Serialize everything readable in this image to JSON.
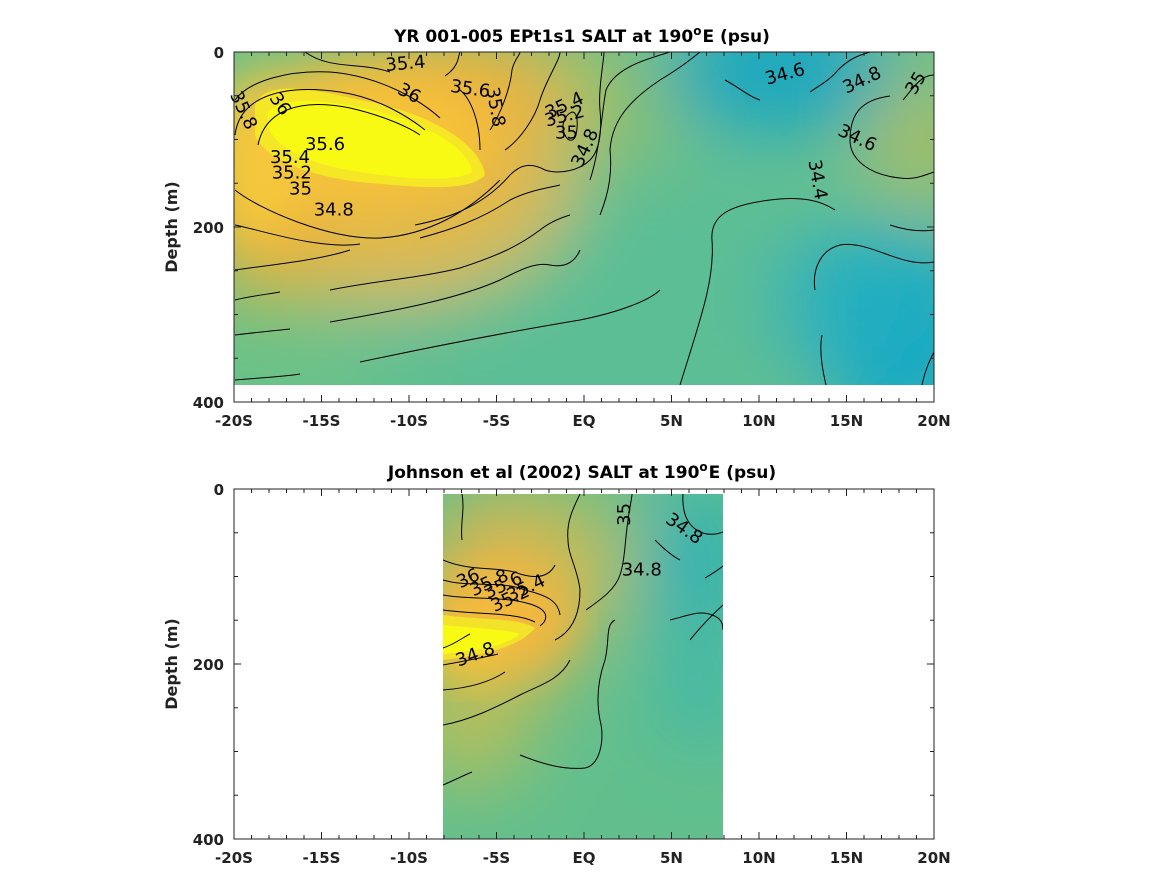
{
  "chart_data": [
    {
      "type": "heatmap",
      "title": "YR 001-005 EPt1s1 SALT at 190",
      "title_sup": "o",
      "title_tail": "E (psu)",
      "ylabel": "Depth (m)",
      "xlim": [
        -20,
        20
      ],
      "ylim": [
        0,
        400
      ],
      "y_reversed": true,
      "data_extent": {
        "x": [
          -20,
          20
        ],
        "y": [
          0,
          380
        ]
      },
      "x_ticks": [
        -20,
        -15,
        -10,
        -5,
        0,
        5,
        10,
        15,
        20
      ],
      "x_tick_labels": [
        "-20S",
        "-15S",
        "-10S",
        "-5S",
        "EQ",
        "5N",
        "10N",
        "15N",
        "20N"
      ],
      "y_ticks": [
        0,
        200,
        400
      ],
      "y_tick_labels": [
        "0",
        "200",
        "400"
      ],
      "colorscale": [
        "#0ca5c6",
        "#3cbab0",
        "#68c088",
        "#9ec462",
        "#d8bb4a",
        "#f7bc40",
        "#f9dc30",
        "#f9fa14"
      ],
      "salinity_range": [
        34.3,
        36.1
      ],
      "features": [
        {
          "x": -12,
          "y": 120,
          "salt": 36.1
        },
        {
          "x": -16,
          "y": 90,
          "salt": 35.9
        },
        {
          "x": -5,
          "y": 60,
          "salt": 35.5
        },
        {
          "x": -2,
          "y": 20,
          "salt": 35.3
        },
        {
          "x": -19,
          "y": 250,
          "salt": 35.4
        },
        {
          "x": 10,
          "y": 20,
          "salt": 34.4
        },
        {
          "x": 18,
          "y": 300,
          "salt": 34.4
        },
        {
          "x": 13,
          "y": 300,
          "salt": 34.5
        },
        {
          "x": 18,
          "y": 80,
          "salt": 35.0
        },
        {
          "x": 5,
          "y": 200,
          "salt": 34.8
        },
        {
          "x": -10,
          "y": 350,
          "salt": 34.85
        },
        {
          "x": 0,
          "y": 330,
          "salt": 34.8
        }
      ],
      "contour_labels": [
        {
          "text": "35.4",
          "x": -10.2,
          "y": 14,
          "angle": -5
        },
        {
          "text": "35.6",
          "x": -6.5,
          "y": 43,
          "angle": 8
        },
        {
          "text": "36",
          "x": -10,
          "y": 48,
          "angle": 28
        },
        {
          "text": "35.8",
          "x": -19.5,
          "y": 67,
          "angle": 65
        },
        {
          "text": "36",
          "x": -17.4,
          "y": 60,
          "angle": 55
        },
        {
          "text": "35.8",
          "x": -5.1,
          "y": 63,
          "angle": 80
        },
        {
          "text": "35.4",
          "x": -1.1,
          "y": 62,
          "angle": -25
        },
        {
          "text": "35.2",
          "x": -1.1,
          "y": 74,
          "angle": -15
        },
        {
          "text": "35",
          "x": -1.0,
          "y": 93,
          "angle": 0
        },
        {
          "text": "34.8",
          "x": 0.1,
          "y": 110,
          "angle": -65
        },
        {
          "text": "35.6",
          "x": -14.8,
          "y": 106,
          "angle": 0
        },
        {
          "text": "35.4",
          "x": -16.8,
          "y": 121,
          "angle": 0
        },
        {
          "text": "35.2",
          "x": -16.7,
          "y": 139,
          "angle": 0
        },
        {
          "text": "35",
          "x": -16.2,
          "y": 157,
          "angle": 0
        },
        {
          "text": "34.8",
          "x": -14.3,
          "y": 181,
          "angle": 0
        },
        {
          "text": "34.6",
          "x": 11.5,
          "y": 26,
          "angle": -15
        },
        {
          "text": "34.8",
          "x": 15.9,
          "y": 33,
          "angle": -25
        },
        {
          "text": "35",
          "x": 19.0,
          "y": 36,
          "angle": -60
        },
        {
          "text": "34.6",
          "x": 15.6,
          "y": 99,
          "angle": 25
        },
        {
          "text": "34.4",
          "x": 13.3,
          "y": 146,
          "angle": 80
        }
      ]
    },
    {
      "type": "heatmap",
      "title": "Johnson et al (2002) SALT at 190",
      "title_sup": "o",
      "title_tail": "E (psu)",
      "ylabel": "Depth (m)",
      "xlim": [
        -20,
        20
      ],
      "ylim": [
        0,
        400
      ],
      "y_reversed": true,
      "data_extent": {
        "x": [
          -8,
          8
        ],
        "y": [
          5,
          400
        ]
      },
      "x_ticks": [
        -20,
        -15,
        -10,
        -5,
        0,
        5,
        10,
        15,
        20
      ],
      "x_tick_labels": [
        "-20S",
        "-15S",
        "-10S",
        "-5S",
        "EQ",
        "5N",
        "10N",
        "15N",
        "20N"
      ],
      "y_ticks": [
        0,
        200,
        400
      ],
      "y_tick_labels": [
        "0",
        "200",
        "400"
      ],
      "colorscale": [
        "#0ca5c6",
        "#3cbab0",
        "#68c088",
        "#9ec462",
        "#d8bb4a",
        "#f7bc40",
        "#f9dc30",
        "#f9fa14"
      ],
      "salinity_range": [
        34.3,
        36.1
      ],
      "features": [
        {
          "x": -7,
          "y": 170,
          "salt": 36.1
        },
        {
          "x": -6,
          "y": 150,
          "salt": 35.9
        },
        {
          "x": -4,
          "y": 140,
          "salt": 35.6
        },
        {
          "x": -3,
          "y": 60,
          "salt": 35.3
        },
        {
          "x": -5,
          "y": 20,
          "salt": 35.2
        },
        {
          "x": 7,
          "y": 30,
          "salt": 34.45
        },
        {
          "x": 7,
          "y": 150,
          "salt": 34.6
        },
        {
          "x": 3,
          "y": 250,
          "salt": 34.8
        },
        {
          "x": -6,
          "y": 350,
          "salt": 34.8
        },
        {
          "x": 0,
          "y": 390,
          "salt": 34.75
        }
      ],
      "contour_labels": [
        {
          "text": "35",
          "x": 2.35,
          "y": 29,
          "angle": -90
        },
        {
          "text": "34.8",
          "x": 5.7,
          "y": 46,
          "angle": 35
        },
        {
          "text": "34.8",
          "x": 3.3,
          "y": 93,
          "angle": 0
        },
        {
          "text": "36",
          "x": -6.6,
          "y": 103,
          "angle": -25
        },
        {
          "text": "35.8",
          "x": -5.4,
          "y": 108,
          "angle": -25
        },
        {
          "text": "35.6",
          "x": -4.6,
          "y": 111,
          "angle": -25
        },
        {
          "text": "35.4",
          "x": -3.3,
          "y": 114,
          "angle": -25
        },
        {
          "text": "35.2",
          "x": -4.2,
          "y": 126,
          "angle": -25
        },
        {
          "text": "34.8",
          "x": -6.2,
          "y": 190,
          "angle": -20
        }
      ]
    }
  ]
}
